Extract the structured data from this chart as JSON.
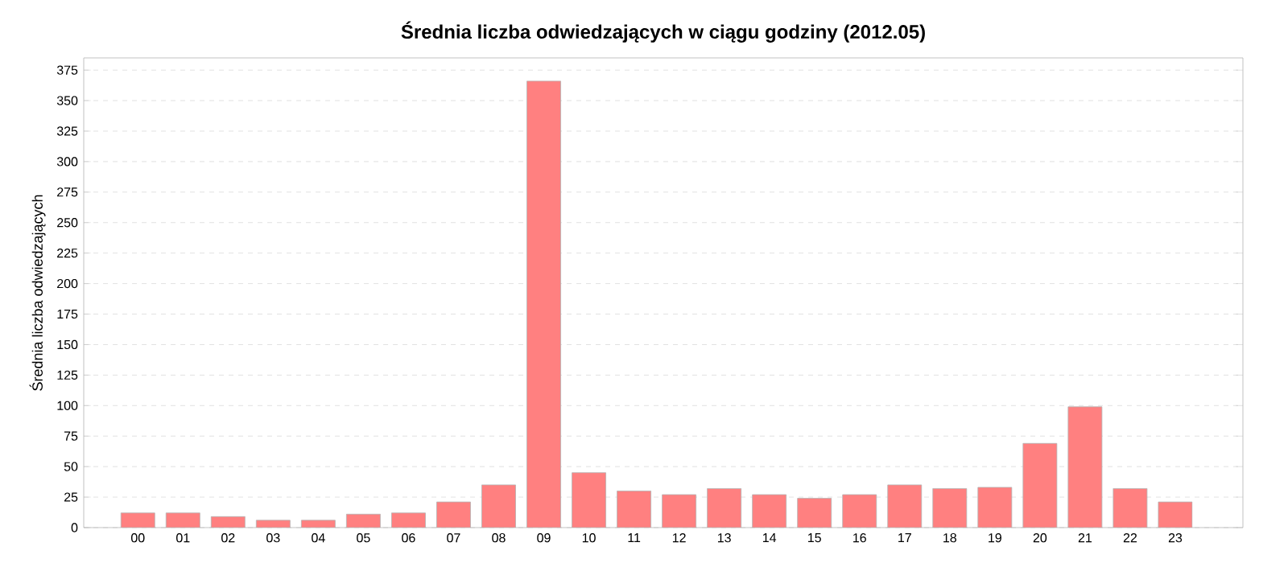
{
  "chart_data": {
    "type": "bar",
    "title": "Średnia liczba odwiedzających w ciągu godziny (2012.05)",
    "ylabel": "Średnia liczba odwiedzających",
    "categories": [
      "00",
      "01",
      "02",
      "03",
      "04",
      "05",
      "06",
      "07",
      "08",
      "09",
      "10",
      "11",
      "12",
      "13",
      "14",
      "15",
      "16",
      "17",
      "18",
      "19",
      "20",
      "21",
      "22",
      "23"
    ],
    "values": [
      12,
      12,
      9,
      6,
      6,
      11,
      12,
      21,
      35,
      366,
      45,
      30,
      27,
      32,
      27,
      24,
      27,
      35,
      32,
      33,
      69,
      99,
      32,
      21
    ],
    "color": "#ff8080",
    "ylim": [
      0,
      385
    ],
    "yticks": [
      0,
      25,
      50,
      75,
      100,
      125,
      150,
      175,
      200,
      225,
      250,
      275,
      300,
      325,
      350,
      375
    ],
    "grid": "y"
  }
}
